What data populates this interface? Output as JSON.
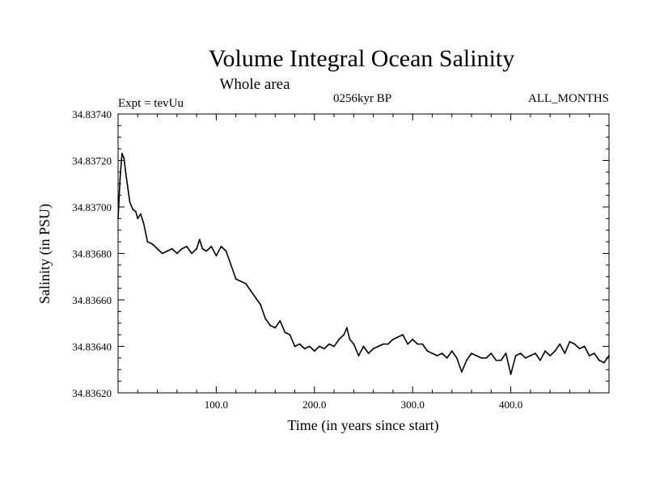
{
  "chart_data": {
    "type": "line",
    "title": "Volume Integral Ocean Salinity",
    "subtitle": "Whole area",
    "experiment": "Expt = tevUu",
    "period": "0256kyr BP",
    "months": "ALL_MONTHS",
    "xlabel": "Time (in years since start)",
    "ylabel": "Salinity (in PSU)",
    "xlim": [
      0,
      500
    ],
    "ylim": [
      34.8362,
      34.8374
    ],
    "grid": false,
    "legend": "none",
    "line_color": "#000000",
    "x_ticks": [
      {
        "value": 100,
        "label": "100.0"
      },
      {
        "value": 200,
        "label": "200.0"
      },
      {
        "value": 300,
        "label": "300.0"
      },
      {
        "value": 400,
        "label": "400.0"
      }
    ],
    "y_ticks": [
      {
        "value": 34.8362,
        "label": "34.83620"
      },
      {
        "value": 34.8364,
        "label": "34.83640"
      },
      {
        "value": 34.8366,
        "label": "34.83660"
      },
      {
        "value": 34.8368,
        "label": "34.83680"
      },
      {
        "value": 34.837,
        "label": "34.83700"
      },
      {
        "value": 34.8372,
        "label": "34.83720"
      },
      {
        "value": 34.8374,
        "label": "34.83740"
      }
    ],
    "series": [
      {
        "x": [
          0,
          2,
          4,
          6,
          8,
          10,
          12,
          15,
          18,
          20,
          23,
          26,
          30,
          35,
          40,
          45,
          50,
          55,
          60,
          65,
          70,
          75,
          80,
          83,
          86,
          90,
          95,
          100,
          105,
          110,
          115,
          120,
          125,
          130,
          135,
          140,
          145,
          150,
          155,
          160,
          165,
          170,
          175,
          180,
          185,
          190,
          195,
          200,
          205,
          210,
          215,
          220,
          225,
          230,
          233,
          236,
          240,
          245,
          250,
          255,
          260,
          265,
          270,
          275,
          280,
          285,
          290,
          295,
          300,
          305,
          310,
          315,
          320,
          325,
          330,
          335,
          340,
          345,
          350,
          355,
          360,
          365,
          370,
          375,
          380,
          385,
          390,
          395,
          400,
          405,
          410,
          415,
          420,
          425,
          430,
          435,
          440,
          445,
          450,
          455,
          460,
          465,
          470,
          475,
          480,
          485,
          490,
          495,
          500
        ],
        "y": [
          34.83695,
          34.83712,
          34.83723,
          34.83721,
          34.83714,
          34.83708,
          34.83702,
          34.83699,
          34.83698,
          34.83695,
          34.83697,
          34.83693,
          34.83685,
          34.83684,
          34.83682,
          34.8368,
          34.83681,
          34.83682,
          34.8368,
          34.83682,
          34.83683,
          34.8368,
          34.83682,
          34.83686,
          34.83682,
          34.83681,
          34.83683,
          34.83679,
          34.83683,
          34.83681,
          34.83675,
          34.83669,
          34.83668,
          34.83667,
          34.83664,
          34.83661,
          34.83658,
          34.83652,
          34.83649,
          34.83648,
          34.83651,
          34.83646,
          34.83645,
          34.8364,
          34.83641,
          34.83639,
          34.8364,
          34.83638,
          34.8364,
          34.83639,
          34.83641,
          34.8364,
          34.83643,
          34.83645,
          34.83648,
          34.83643,
          34.83641,
          34.83636,
          34.8364,
          34.83637,
          34.83639,
          34.8364,
          34.83641,
          34.83641,
          34.83643,
          34.83644,
          34.83645,
          34.83641,
          34.83643,
          34.83641,
          34.83641,
          34.83638,
          34.83637,
          34.83636,
          34.83637,
          34.83635,
          34.83638,
          34.83635,
          34.83629,
          34.83634,
          34.83637,
          34.83636,
          34.83635,
          34.83635,
          34.83637,
          34.83634,
          34.83634,
          34.83637,
          34.83628,
          34.83636,
          34.83637,
          34.83635,
          34.83636,
          34.83637,
          34.83634,
          34.83638,
          34.83636,
          34.83638,
          34.83641,
          34.83637,
          34.83642,
          34.83641,
          34.83639,
          34.8364,
          34.83636,
          34.83637,
          34.83634,
          34.83633,
          34.83636
        ]
      }
    ]
  }
}
